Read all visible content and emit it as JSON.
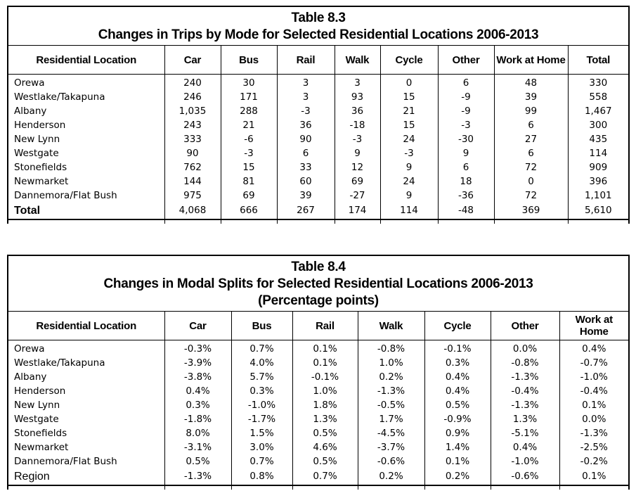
{
  "page": {
    "background_color": "#ffffff",
    "border_color": "#000000",
    "text_color": "#000000"
  },
  "table83": {
    "title_line1": "Table 8.3",
    "title_line2": "Changes in Trips by Mode for Selected Residential Locations 2006-2013",
    "columns": [
      "Residential Location",
      "Car",
      "Bus",
      "Rail",
      "Walk",
      "Cycle",
      "Other",
      "Work at Home",
      "Total"
    ],
    "rows": [
      {
        "cells": [
          "Orewa",
          "240",
          "30",
          "3",
          "3",
          "0",
          "6",
          "48",
          "330"
        ]
      },
      {
        "cells": [
          "Westlake/Takapuna",
          "246",
          "171",
          "3",
          "93",
          "15",
          "-9",
          "39",
          "558"
        ]
      },
      {
        "cells": [
          "Albany",
          "1,035",
          "288",
          "-3",
          "36",
          "21",
          "-9",
          "99",
          "1,467"
        ]
      },
      {
        "cells": [
          "Henderson",
          "243",
          "21",
          "36",
          "-18",
          "15",
          "-3",
          "6",
          "300"
        ]
      },
      {
        "cells": [
          "New Lynn",
          "333",
          "-6",
          "90",
          "-3",
          "24",
          "-30",
          "27",
          "435"
        ]
      },
      {
        "cells": [
          "Westgate",
          "90",
          "-3",
          "6",
          "9",
          "-3",
          "9",
          "6",
          "114"
        ]
      },
      {
        "cells": [
          "Stonefields",
          "762",
          "15",
          "33",
          "12",
          "9",
          "6",
          "72",
          "909"
        ]
      },
      {
        "cells": [
          "Newmarket",
          "144",
          "81",
          "60",
          "69",
          "24",
          "18",
          "0",
          "396"
        ]
      },
      {
        "cells": [
          "Dannemora/Flat Bush",
          "975",
          "69",
          "39",
          "-27",
          "9",
          "-36",
          "72",
          "1,101"
        ]
      },
      {
        "cells": [
          "Total",
          "4,068",
          "666",
          "267",
          "174",
          "114",
          "-48",
          "369",
          "5,610"
        ],
        "summary": "total"
      }
    ]
  },
  "table84": {
    "title_line1": "Table 8.4",
    "title_line2": "Changes in Modal Splits for Selected Residential Locations 2006-2013",
    "title_line3": "(Percentage points)",
    "columns": [
      "Residential Location",
      "Car",
      "Bus",
      "Rail",
      "Walk",
      "Cycle",
      "Other",
      "Work at Home"
    ],
    "rows": [
      {
        "cells": [
          "Orewa",
          "-0.3%",
          "0.7%",
          "0.1%",
          "-0.8%",
          "-0.1%",
          "0.0%",
          "0.4%"
        ]
      },
      {
        "cells": [
          "Westlake/Takapuna",
          "-3.9%",
          "4.0%",
          "0.1%",
          "1.0%",
          "0.3%",
          "-0.8%",
          "-0.7%"
        ]
      },
      {
        "cells": [
          "Albany",
          "-3.8%",
          "5.7%",
          "-0.1%",
          "0.2%",
          "0.4%",
          "-1.3%",
          "-1.0%"
        ]
      },
      {
        "cells": [
          "Henderson",
          "0.4%",
          "0.3%",
          "1.0%",
          "-1.3%",
          "0.4%",
          "-0.4%",
          "-0.4%"
        ]
      },
      {
        "cells": [
          "New Lynn",
          "0.3%",
          "-1.0%",
          "1.8%",
          "-0.5%",
          "0.5%",
          "-1.3%",
          "0.1%"
        ]
      },
      {
        "cells": [
          "Westgate",
          "-1.8%",
          "-1.7%",
          "1.3%",
          "1.7%",
          "-0.9%",
          "1.3%",
          "0.0%"
        ]
      },
      {
        "cells": [
          "Stonefields",
          "8.0%",
          "1.5%",
          "0.5%",
          "-4.5%",
          "0.9%",
          "-5.1%",
          "-1.3%"
        ]
      },
      {
        "cells": [
          "Newmarket",
          "-3.1%",
          "3.0%",
          "4.6%",
          "-3.7%",
          "1.4%",
          "0.4%",
          "-2.5%"
        ]
      },
      {
        "cells": [
          "Dannemora/Flat Bush",
          "0.5%",
          "0.7%",
          "0.5%",
          "-0.6%",
          "0.1%",
          "-1.0%",
          "-0.2%"
        ]
      },
      {
        "cells": [
          "Region",
          "-1.3%",
          "0.8%",
          "0.7%",
          "0.2%",
          "0.2%",
          "-0.6%",
          "0.1%"
        ],
        "summary": "region"
      }
    ]
  }
}
